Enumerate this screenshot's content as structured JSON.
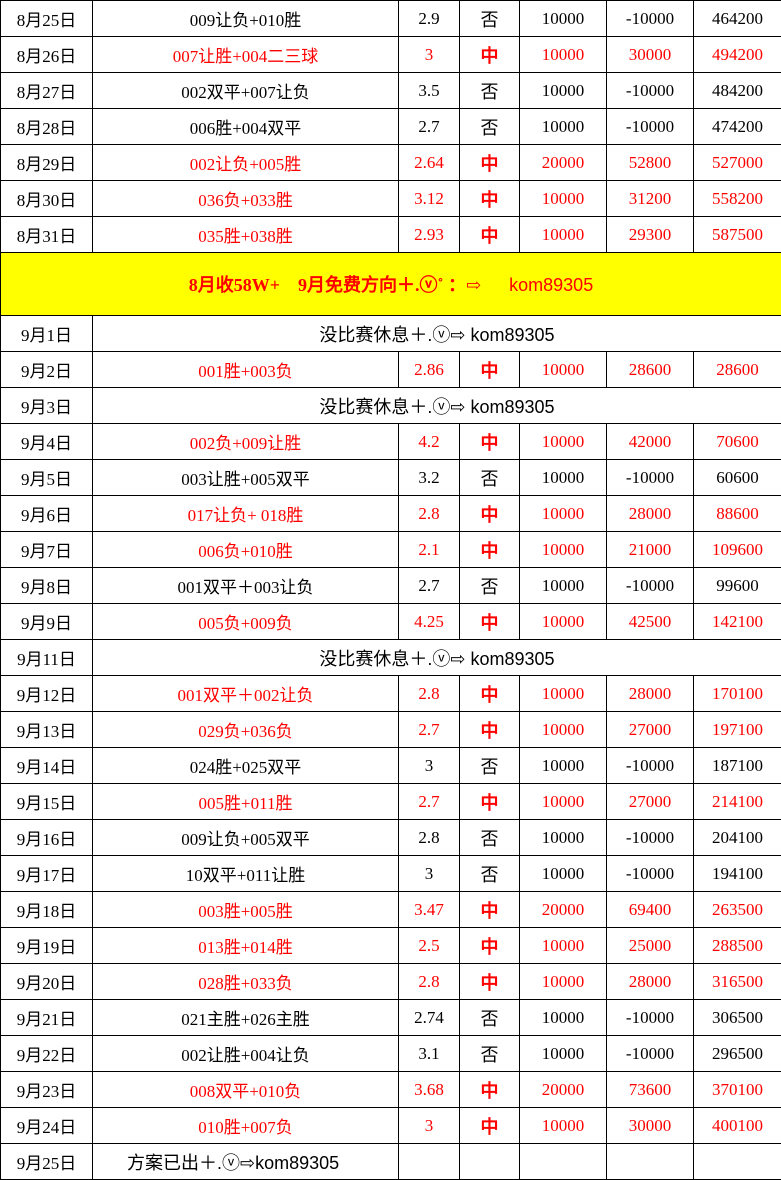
{
  "colors": {
    "hit_text": "#ff0000",
    "banner_bg": "#ffff00",
    "normal_text": "#000000"
  },
  "rows_top": [
    {
      "date": "8月25日",
      "pick": "009让负+010胜",
      "odds": "2.9",
      "result": "否",
      "stake": "10000",
      "profit": "-10000",
      "balance": "464200",
      "hit": false
    },
    {
      "date": "8月26日",
      "pick": "007让胜+004二三球",
      "odds": "3",
      "result": "中",
      "stake": "10000",
      "profit": "30000",
      "balance": "494200",
      "hit": true
    },
    {
      "date": "8月27日",
      "pick": "002双平+007让负",
      "odds": "3.5",
      "result": "否",
      "stake": "10000",
      "profit": "-10000",
      "balance": "484200",
      "hit": false
    },
    {
      "date": "8月28日",
      "pick": "006胜+004双平",
      "odds": "2.7",
      "result": "否",
      "stake": "10000",
      "profit": "-10000",
      "balance": "474200",
      "hit": false
    },
    {
      "date": "8月29日",
      "pick": "002让负+005胜",
      "odds": "2.64",
      "result": "中",
      "stake": "20000",
      "profit": "52800",
      "balance": "527000",
      "hit": true
    },
    {
      "date": "8月30日",
      "pick": "036负+033胜",
      "odds": "3.12",
      "result": "中",
      "stake": "10000",
      "profit": "31200",
      "balance": "558200",
      "hit": true
    },
    {
      "date": "8月31日",
      "pick": "035胜+038胜",
      "odds": "2.93",
      "result": "中",
      "stake": "10000",
      "profit": "29300",
      "balance": "587500",
      "hit": true
    }
  ],
  "banner": {
    "text": "8月收58W+　9月免费方向＋.ⓥ˚ ：⇨",
    "contact": "kom89305"
  },
  "rows_bottom": [
    {
      "date": "9月1日",
      "note": "没比赛休息＋.ⓥ⇨ kom89305"
    },
    {
      "date": "9月2日",
      "pick": "001胜+003负",
      "odds": "2.86",
      "result": "中",
      "stake": "10000",
      "profit": "28600",
      "balance": "28600",
      "hit": true
    },
    {
      "date": "9月3日",
      "note": "没比赛休息＋.ⓥ⇨ kom89305"
    },
    {
      "date": "9月4日",
      "pick": "002负+009让胜",
      "odds": "4.2",
      "result": "中",
      "stake": "10000",
      "profit": "42000",
      "balance": "70600",
      "hit": true
    },
    {
      "date": "9月5日",
      "pick": "003让胜+005双平",
      "odds": "3.2",
      "result": "否",
      "stake": "10000",
      "profit": "-10000",
      "balance": "60600",
      "hit": false
    },
    {
      "date": "9月6日",
      "pick": "017让负+ 018胜",
      "odds": "2.8",
      "result": "中",
      "stake": "10000",
      "profit": "28000",
      "balance": "88600",
      "hit": true
    },
    {
      "date": "9月7日",
      "pick": "006负+010胜",
      "odds": "2.1",
      "result": "中",
      "stake": "10000",
      "profit": "21000",
      "balance": "109600",
      "hit": true
    },
    {
      "date": "9月8日",
      "pick": "001双平＋003让负",
      "odds": "2.7",
      "result": "否",
      "stake": "10000",
      "profit": "-10000",
      "balance": "99600",
      "hit": false
    },
    {
      "date": "9月9日",
      "pick": "005负+009负",
      "odds": "4.25",
      "result": "中",
      "stake": "10000",
      "profit": "42500",
      "balance": "142100",
      "hit": true
    },
    {
      "date": "9月11日",
      "note": "没比赛休息＋.ⓥ⇨ kom89305"
    },
    {
      "date": "9月12日",
      "pick": "001双平＋002让负",
      "odds": "2.8",
      "result": "中",
      "stake": "10000",
      "profit": "28000",
      "balance": "170100",
      "hit": true
    },
    {
      "date": "9月13日",
      "pick": "029负+036负",
      "odds": "2.7",
      "result": "中",
      "stake": "10000",
      "profit": "27000",
      "balance": "197100",
      "hit": true
    },
    {
      "date": "9月14日",
      "pick": "024胜+025双平",
      "odds": "3",
      "result": "否",
      "stake": "10000",
      "profit": "-10000",
      "balance": "187100",
      "hit": false
    },
    {
      "date": "9月15日",
      "pick": "005胜+011胜",
      "odds": "2.7",
      "result": "中",
      "stake": "10000",
      "profit": "27000",
      "balance": "214100",
      "hit": true
    },
    {
      "date": "9月16日",
      "pick": "009让负+005双平",
      "odds": "2.8",
      "result": "否",
      "stake": "10000",
      "profit": "-10000",
      "balance": "204100",
      "hit": false
    },
    {
      "date": "9月17日",
      "pick": "10双平+011让胜",
      "odds": "3",
      "result": "否",
      "stake": "10000",
      "profit": "-10000",
      "balance": "194100",
      "hit": false
    },
    {
      "date": "9月18日",
      "pick": "003胜+005胜",
      "odds": "3.47",
      "result": "中",
      "stake": "20000",
      "profit": "69400",
      "balance": "263500",
      "hit": true
    },
    {
      "date": "9月19日",
      "pick": "013胜+014胜",
      "odds": "2.5",
      "result": "中",
      "stake": "10000",
      "profit": "25000",
      "balance": "288500",
      "hit": true
    },
    {
      "date": "9月20日",
      "pick": "028胜+033负",
      "odds": "2.8",
      "result": "中",
      "stake": "10000",
      "profit": "28000",
      "balance": "316500",
      "hit": true
    },
    {
      "date": "9月21日",
      "pick": "021主胜+026主胜",
      "odds": "2.74",
      "result": "否",
      "stake": "10000",
      "profit": "-10000",
      "balance": "306500",
      "hit": false
    },
    {
      "date": "9月22日",
      "pick": "002让胜+004让负",
      "odds": "3.1",
      "result": "否",
      "stake": "10000",
      "profit": "-10000",
      "balance": "296500",
      "hit": false
    },
    {
      "date": "9月23日",
      "pick": "008双平+010负",
      "odds": "3.68",
      "result": "中",
      "stake": "20000",
      "profit": "73600",
      "balance": "370100",
      "hit": true
    },
    {
      "date": "9月24日",
      "pick": "010胜+007负",
      "odds": "3",
      "result": "中",
      "stake": "10000",
      "profit": "30000",
      "balance": "400100",
      "hit": true
    },
    {
      "date": "9月25日",
      "note_left": "方案已出＋.ⓥ⇨kom89305"
    }
  ]
}
